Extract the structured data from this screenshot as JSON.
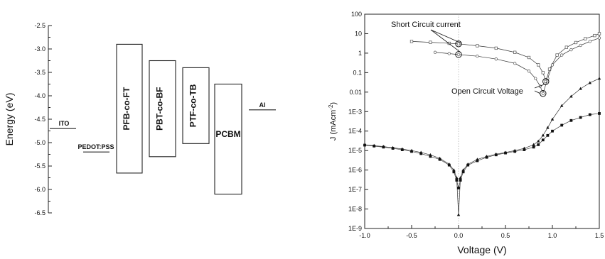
{
  "chart_data": [
    {
      "type": "diagram",
      "ylabel": "Energy (eV)",
      "ylim": [
        -6.5,
        -2.5
      ],
      "yticks": [
        -2.5,
        -3.0,
        -3.5,
        -4.0,
        -4.5,
        -5.0,
        -5.5,
        -6.0,
        -6.5
      ],
      "levels": [
        {
          "name": "ITO",
          "energy": -4.7
        },
        {
          "name": "PEDOT:PSS",
          "energy": -5.2
        },
        {
          "name": "Al",
          "energy": -4.3
        }
      ],
      "bands": [
        {
          "name": "PFB-co-FT",
          "lumo": -2.9,
          "homo": -5.65
        },
        {
          "name": "PBT-co-BF",
          "lumo": -3.25,
          "homo": -5.3
        },
        {
          "name": "PTF-co-TB",
          "lumo": -3.4,
          "homo": -5.02
        },
        {
          "name": "PCBM",
          "lumo": -3.75,
          "homo": -6.1
        }
      ]
    },
    {
      "type": "scatter",
      "xlabel": "Voltage (V)",
      "ylabel": "J (mAcm",
      "ylabel_sup": "-2",
      "ylabel_close": ")",
      "yscale": "log",
      "xlim": [
        -1.0,
        1.5
      ],
      "ylim": [
        1e-09,
        100
      ],
      "xticks": [
        "-1.0",
        "-0.5",
        "0.0",
        "0.5",
        "1.0",
        "1.5"
      ],
      "yticks": [
        "100",
        "10",
        "1",
        "0.1",
        "0.01",
        "1E-3",
        "1E-4",
        "1E-5",
        "1E-6",
        "1E-7",
        "1E-8",
        "1E-9"
      ],
      "annotations": [
        {
          "text": "Short Circuit current",
          "targets": [
            {
              "x": 0.0,
              "y": 3.0
            },
            {
              "x": 0.0,
              "y": 0.85
            }
          ]
        },
        {
          "text": "Open Circuit Voltage",
          "targets": [
            {
              "x": 0.93,
              "y": 0.035
            },
            {
              "x": 0.9,
              "y": 0.0085
            }
          ]
        }
      ],
      "series": [
        {
          "marker": "open-square",
          "x": [
            -0.5,
            -0.3,
            -0.1,
            0.0,
            0.2,
            0.4,
            0.6,
            0.75,
            0.85,
            0.9,
            0.93,
            0.97,
            1.05,
            1.15,
            1.25,
            1.35,
            1.45,
            1.5
          ],
          "y": [
            4.0,
            3.6,
            3.2,
            3.0,
            2.4,
            1.8,
            1.1,
            0.6,
            0.25,
            0.1,
            0.035,
            0.15,
            0.8,
            2.0,
            3.5,
            5.5,
            8.0,
            10.0
          ]
        },
        {
          "marker": "open-circle",
          "x": [
            -0.25,
            -0.1,
            0.0,
            0.2,
            0.4,
            0.6,
            0.75,
            0.82,
            0.87,
            0.9,
            0.95,
            1.0,
            1.1,
            1.2,
            1.3,
            1.4,
            1.5
          ],
          "y": [
            1.1,
            0.95,
            0.85,
            0.7,
            0.5,
            0.3,
            0.12,
            0.05,
            0.02,
            0.0085,
            0.05,
            0.25,
            0.8,
            1.5,
            2.5,
            4.0,
            6.0
          ]
        },
        {
          "marker": "filled-triangle",
          "x": [
            -1.0,
            -0.9,
            -0.8,
            -0.7,
            -0.6,
            -0.5,
            -0.4,
            -0.3,
            -0.2,
            -0.1,
            -0.05,
            -0.02,
            0.0,
            0.02,
            0.05,
            0.1,
            0.2,
            0.3,
            0.4,
            0.5,
            0.6,
            0.7,
            0.8,
            0.85,
            0.9,
            0.95,
            1.0,
            1.1,
            1.2,
            1.3,
            1.4,
            1.5
          ],
          "y": [
            2e-05,
            1.8e-05,
            1.6e-05,
            1.4e-05,
            1.2e-05,
            1e-05,
            8e-06,
            6e-06,
            4e-06,
            2e-06,
            1e-06,
            4e-07,
            5e-09,
            4e-07,
            1e-06,
            2e-06,
            3.5e-06,
            5e-06,
            6.5e-06,
            8e-06,
            1e-05,
            1.3e-05,
            2e-05,
            3e-05,
            6e-05,
            0.00015,
            0.0004,
            0.002,
            0.006,
            0.015,
            0.03,
            0.05
          ]
        },
        {
          "marker": "filled-square",
          "x": [
            -1.0,
            -0.9,
            -0.8,
            -0.7,
            -0.6,
            -0.5,
            -0.4,
            -0.3,
            -0.2,
            -0.1,
            -0.05,
            -0.02,
            0.0,
            0.02,
            0.05,
            0.1,
            0.2,
            0.3,
            0.4,
            0.5,
            0.6,
            0.7,
            0.8,
            0.85,
            0.9,
            0.95,
            1.0,
            1.1,
            1.2,
            1.3,
            1.4,
            1.5
          ],
          "y": [
            1.9e-05,
            1.7e-05,
            1.5e-05,
            1.3e-05,
            1.1e-05,
            9e-06,
            7e-06,
            5e-06,
            3.5e-06,
            1.8e-06,
            8e-07,
            3e-07,
            1.2e-07,
            3e-07,
            8e-07,
            1.8e-06,
            3e-06,
            4.5e-06,
            6e-06,
            7.5e-06,
            9e-06,
            1.1e-05,
            1.5e-05,
            2e-05,
            3.5e-05,
            6e-05,
            0.0001,
            0.0002,
            0.00035,
            0.0005,
            0.0007,
            0.0008
          ]
        }
      ]
    }
  ]
}
